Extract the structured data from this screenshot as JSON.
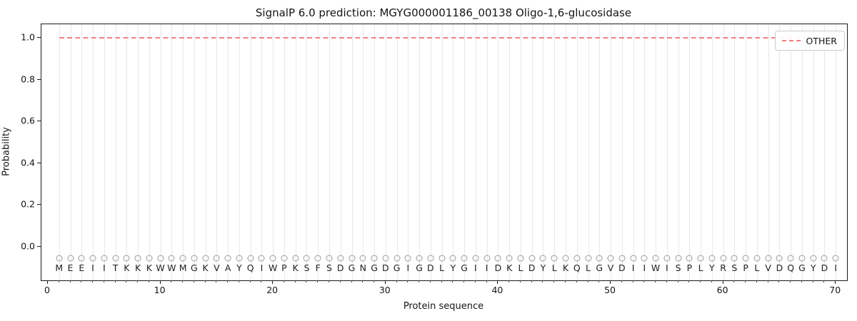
{
  "chart_data": {
    "type": "line",
    "title": "SignalP 6.0 prediction: MGYG000001186_00138 Oligo-1,6-glucosidase",
    "xlabel": "Protein sequence",
    "ylabel": "Probability",
    "xlim": [
      -0.57,
      71.0
    ],
    "ylim": [
      -0.16,
      1.065
    ],
    "grid": "vertical gridline at every residue position, no horizontal gridlines",
    "x_ticks": [
      {
        "v": 0,
        "label": "0"
      },
      {
        "v": 10,
        "label": "10"
      },
      {
        "v": 20,
        "label": "20"
      },
      {
        "v": 30,
        "label": "30"
      },
      {
        "v": 40,
        "label": "40"
      },
      {
        "v": 50,
        "label": "50"
      },
      {
        "v": 60,
        "label": "60"
      },
      {
        "v": 70,
        "label": "70"
      }
    ],
    "y_ticks": [
      {
        "v": 0.0,
        "label": "0.0"
      },
      {
        "v": 0.2,
        "label": "0.2"
      },
      {
        "v": 0.4,
        "label": "0.4"
      },
      {
        "v": 0.6,
        "label": "0.6"
      },
      {
        "v": 0.8,
        "label": "0.8"
      },
      {
        "v": 1.0,
        "label": "1.0"
      }
    ],
    "legend": {
      "position": "upper-right",
      "entries": [
        {
          "label": "OTHER",
          "color": "#f08080",
          "linestyle": "dashed"
        }
      ]
    },
    "series": [
      {
        "name": "OTHER",
        "linestyle": "dashed",
        "color": "#f08080",
        "x": [
          1,
          2,
          3,
          4,
          5,
          6,
          7,
          8,
          9,
          10,
          11,
          12,
          13,
          14,
          15,
          16,
          17,
          18,
          19,
          20,
          21,
          22,
          23,
          24,
          25,
          26,
          27,
          28,
          29,
          30,
          31,
          32,
          33,
          34,
          35,
          36,
          37,
          38,
          39,
          40,
          41,
          42,
          43,
          44,
          45,
          46,
          47,
          48,
          49,
          50,
          51,
          52,
          53,
          54,
          55,
          56,
          57,
          58,
          59,
          60,
          61,
          62,
          63,
          64,
          65,
          66,
          67,
          68,
          69,
          70
        ],
        "values": [
          1.0,
          1.0,
          1.0,
          1.0,
          1.0,
          1.0,
          1.0,
          1.0,
          1.0,
          1.0,
          1.0,
          1.0,
          1.0,
          1.0,
          1.0,
          1.0,
          1.0,
          1.0,
          1.0,
          1.0,
          1.0,
          1.0,
          1.0,
          1.0,
          1.0,
          1.0,
          1.0,
          1.0,
          1.0,
          1.0,
          1.0,
          1.0,
          1.0,
          1.0,
          1.0,
          1.0,
          1.0,
          1.0,
          1.0,
          1.0,
          1.0,
          1.0,
          1.0,
          1.0,
          1.0,
          1.0,
          1.0,
          1.0,
          1.0,
          1.0,
          1.0,
          1.0,
          1.0,
          1.0,
          1.0,
          1.0,
          1.0,
          1.0,
          1.0,
          1.0,
          1.0,
          1.0,
          1.0,
          1.0,
          1.0,
          1.0,
          1.0,
          1.0,
          1.0,
          1.0
        ]
      }
    ],
    "residues": [
      "M",
      "E",
      "E",
      "I",
      "I",
      "T",
      "K",
      "K",
      "K",
      "W",
      "W",
      "M",
      "G",
      "K",
      "V",
      "A",
      "Y",
      "Q",
      "I",
      "W",
      "P",
      "K",
      "S",
      "F",
      "S",
      "D",
      "G",
      "N",
      "G",
      "D",
      "G",
      "I",
      "G",
      "D",
      "L",
      "Y",
      "G",
      "I",
      "I",
      "D",
      "K",
      "L",
      "D",
      "Y",
      "L",
      "K",
      "Q",
      "L",
      "G",
      "V",
      "D",
      "I",
      "I",
      "W",
      "I",
      "S",
      "P",
      "L",
      "Y",
      "R",
      "S",
      "P",
      "L",
      "V",
      "D",
      "Q",
      "G",
      "Y",
      "D",
      "I"
    ],
    "residue_markers": {
      "shape": "open-circle",
      "y": -0.054,
      "edge_color": "#9b9b9b"
    },
    "colors": {
      "line": "#f08080",
      "gridline": "#e9e9e9",
      "marker_edge": "#9b9b9b",
      "text": "#151515"
    }
  }
}
